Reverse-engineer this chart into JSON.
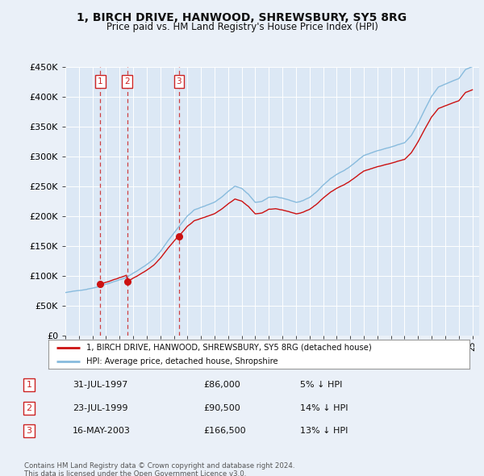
{
  "title": "1, BIRCH DRIVE, HANWOOD, SHREWSBURY, SY5 8RG",
  "subtitle": "Price paid vs. HM Land Registry's House Price Index (HPI)",
  "hpi_label": "HPI: Average price, detached house, Shropshire",
  "property_label": "1, BIRCH DRIVE, HANWOOD, SHREWSBURY, SY5 8RG (detached house)",
  "footnote1": "Contains HM Land Registry data © Crown copyright and database right 2024.",
  "footnote2": "This data is licensed under the Open Government Licence v3.0.",
  "transactions": [
    {
      "num": 1,
      "date": "31-JUL-1997",
      "price": 86000,
      "hpi_rel": "5% ↓ HPI",
      "year": 1997.58
    },
    {
      "num": 2,
      "date": "23-JUL-1999",
      "price": 90500,
      "hpi_rel": "14% ↓ HPI",
      "year": 1999.56
    },
    {
      "num": 3,
      "date": "16-MAY-2003",
      "price": 166500,
      "hpi_rel": "13% ↓ HPI",
      "year": 2003.37
    }
  ],
  "ylim": [
    0,
    450000
  ],
  "xlim_start": 1995.0,
  "xlim_end": 2025.5,
  "bg_color": "#eaf0f8",
  "plot_bg": "#dce8f5",
  "grid_color": "#ffffff",
  "hpi_color": "#88bbdd",
  "property_color": "#cc1111",
  "dashed_color": "#cc2222",
  "box_color": "#cc2222"
}
